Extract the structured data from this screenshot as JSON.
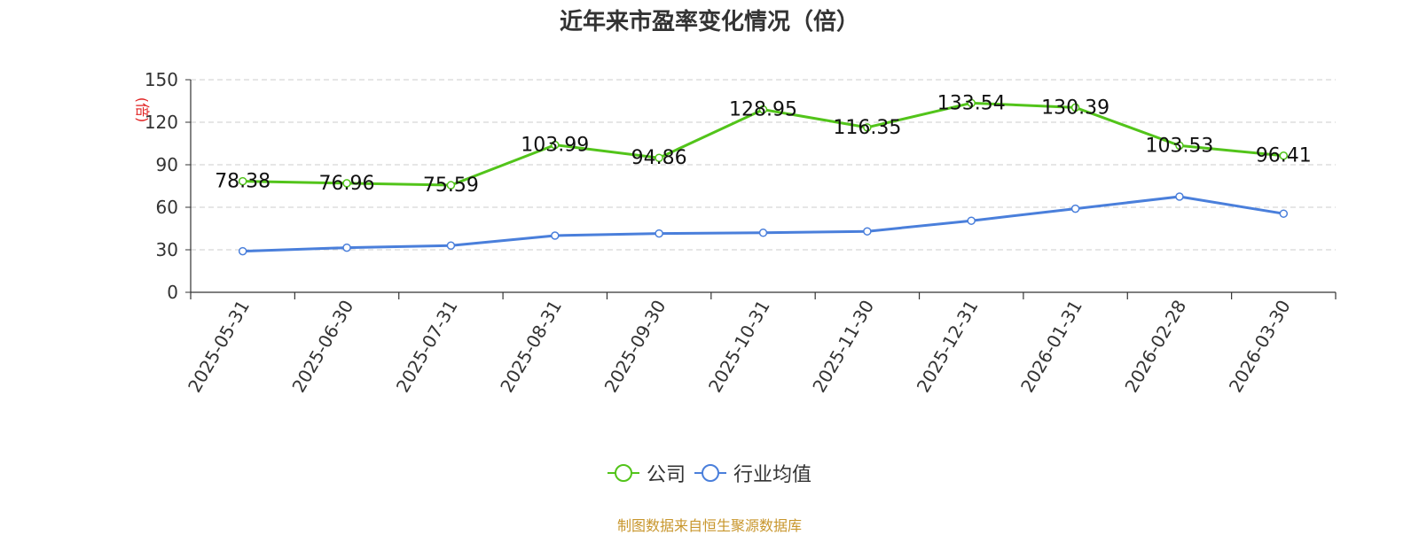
{
  "chart_data": {
    "type": "line",
    "title": "近年来市盈率变化情况（倍）",
    "ylabel": "(倍)",
    "categories": [
      "2025-05-31",
      "2025-06-30",
      "2025-07-31",
      "2025-08-31",
      "2025-09-30",
      "2025-10-31",
      "2025-11-30",
      "2025-12-31",
      "2026-01-31",
      "2026-02-28",
      "2026-03-30"
    ],
    "ylim": [
      0,
      150
    ],
    "yticks": [
      0,
      30,
      60,
      90,
      120,
      150
    ],
    "grid": true,
    "legend_position": "bottom",
    "series": [
      {
        "name": "公司",
        "color": "#52c41a",
        "values": [
          78.38,
          76.96,
          75.59,
          103.99,
          94.86,
          128.95,
          116.35,
          133.54,
          130.39,
          103.53,
          96.41
        ],
        "labels": [
          "78.38",
          "76.96",
          "75.59",
          "103.99",
          "94.86",
          "128.95",
          "116.35",
          "133.54",
          "130.39",
          "103.53",
          "96.41"
        ]
      },
      {
        "name": "行业均值",
        "color": "#4a7fdb",
        "values": [
          29,
          31.5,
          33,
          40,
          41.5,
          42,
          43,
          50.5,
          59,
          67.5,
          55.5
        ]
      }
    ]
  },
  "footer": {
    "source": "制图数据来自恒生聚源数据库"
  }
}
